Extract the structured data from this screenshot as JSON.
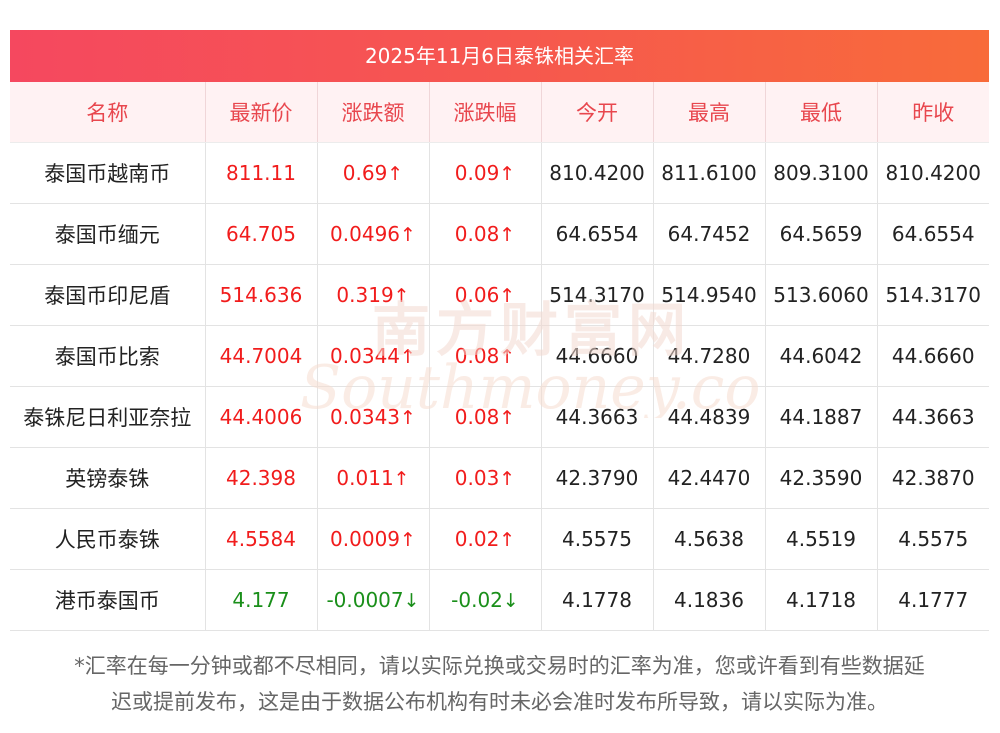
{
  "title": "2025年11月6日泰铢相关汇率",
  "columns": [
    "名称",
    "最新价",
    "涨跌额",
    "涨跌幅",
    "今开",
    "最高",
    "最低",
    "昨收"
  ],
  "rows": [
    {
      "name": "泰国币越南币",
      "latest": "811.11",
      "change": "0.69",
      "pct": "0.09",
      "arrow": "↑",
      "dir": "up",
      "open": "810.4200",
      "high": "811.6100",
      "low": "809.3100",
      "prev": "810.4200"
    },
    {
      "name": "泰国币缅元",
      "latest": "64.705",
      "change": "0.0496",
      "pct": "0.08",
      "arrow": "↑",
      "dir": "up",
      "open": "64.6554",
      "high": "64.7452",
      "low": "64.5659",
      "prev": "64.6554"
    },
    {
      "name": "泰国币印尼盾",
      "latest": "514.636",
      "change": "0.319",
      "pct": "0.06",
      "arrow": "↑",
      "dir": "up",
      "open": "514.3170",
      "high": "514.9540",
      "low": "513.6060",
      "prev": "514.3170"
    },
    {
      "name": "泰国币比索",
      "latest": "44.7004",
      "change": "0.0344",
      "pct": "0.08",
      "arrow": "↑",
      "dir": "up",
      "open": "44.6660",
      "high": "44.7280",
      "low": "44.6042",
      "prev": "44.6660"
    },
    {
      "name": "泰铢尼日利亚奈拉",
      "latest": "44.4006",
      "change": "0.0343",
      "pct": "0.08",
      "arrow": "↑",
      "dir": "up",
      "open": "44.3663",
      "high": "44.4839",
      "low": "44.1887",
      "prev": "44.3663"
    },
    {
      "name": "英镑泰铢",
      "latest": "42.398",
      "change": "0.011",
      "pct": "0.03",
      "arrow": "↑",
      "dir": "up",
      "open": "42.3790",
      "high": "42.4470",
      "low": "42.3590",
      "prev": "42.3870"
    },
    {
      "name": "人民币泰铢",
      "latest": "4.5584",
      "change": "0.0009",
      "pct": "0.02",
      "arrow": "↑",
      "dir": "up",
      "open": "4.5575",
      "high": "4.5638",
      "low": "4.5519",
      "prev": "4.5575"
    },
    {
      "name": "港币泰国币",
      "latest": "4.177",
      "change": "-0.0007",
      "pct": "-0.02",
      "arrow": "↓",
      "dir": "down",
      "open": "4.1778",
      "high": "4.1836",
      "low": "4.1718",
      "prev": "4.1777"
    }
  ],
  "watermark": {
    "cn": "南方财富网",
    "en": "Southmoney.com"
  },
  "footnote": {
    "line1": "*汇率在每一分钟或都不尽相同，请以实际兑换或交易时的汇率为准，您或许看到有些数据延",
    "line2": "迟或提前发布，这是由于数据公布机构有时未必会准时发布所导致，请以实际为准。"
  },
  "colors": {
    "up": "#f11c1c",
    "down": "#1a8f1a",
    "header_text": "#e8474e",
    "title_bar": "#f6574f"
  }
}
